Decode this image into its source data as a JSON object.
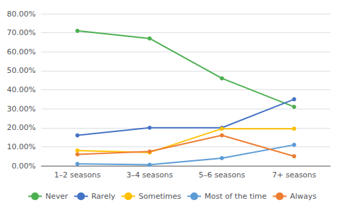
{
  "chart_data": {
    "type": "line",
    "categories": [
      "1–2 seasons",
      "3–4 seasons",
      "5–6 seasons",
      "7+ seasons"
    ],
    "series": [
      {
        "name": "Never",
        "color": "#4CAF50",
        "values": [
          71.0,
          67.0,
          46.0,
          31.0
        ]
      },
      {
        "name": "Rarely",
        "color": "#4472C4",
        "values": [
          16.0,
          20.0,
          20.0,
          35.0
        ]
      },
      {
        "name": "Sometimes",
        "color": "#FFC000",
        "values": [
          8.0,
          7.0,
          19.5,
          19.5
        ]
      },
      {
        "name": "Most of the time",
        "color": "#5B9BD5",
        "values": [
          1.0,
          0.5,
          4.0,
          11.0
        ]
      },
      {
        "name": "Always",
        "color": "#ED7D31",
        "values": [
          6.0,
          7.5,
          16.0,
          5.0
        ]
      }
    ],
    "ylim": [
      0,
      80
    ],
    "yticks": [
      {
        "value": 0,
        "label": "0.00%"
      },
      {
        "value": 10,
        "label": "10.00%"
      },
      {
        "value": 20,
        "label": "20.00%"
      },
      {
        "value": 30,
        "label": "30.00%"
      },
      {
        "value": 40,
        "label": "40.00%"
      },
      {
        "value": 50,
        "label": "50.00%"
      },
      {
        "value": 60,
        "label": "60.00%"
      },
      {
        "value": 70,
        "label": "70.00%"
      },
      {
        "value": 80,
        "label": "80.00%"
      }
    ],
    "grid": true,
    "legend": "bottom",
    "marker": "circle"
  }
}
